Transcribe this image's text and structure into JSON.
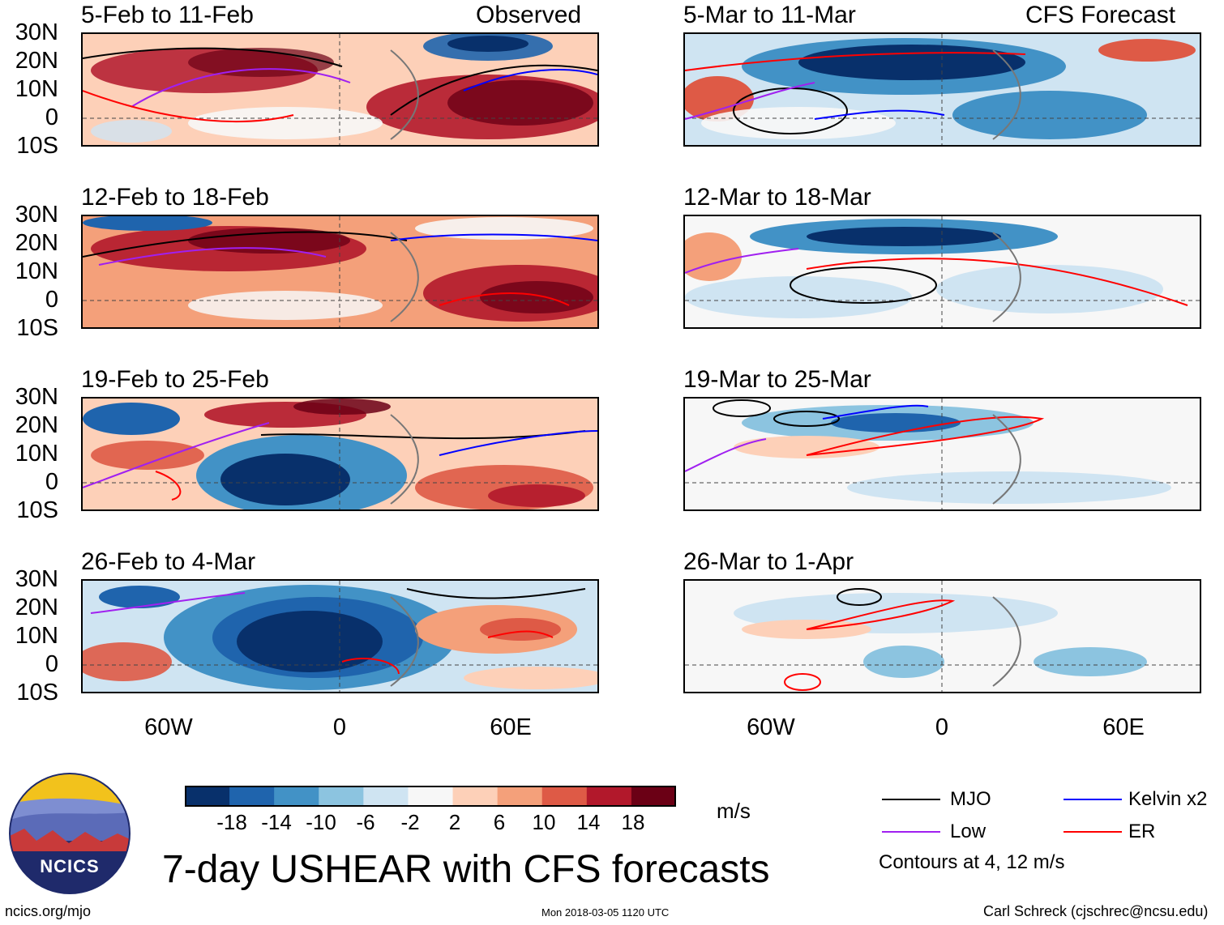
{
  "header": {
    "left_label": "Observed",
    "right_label": "CFS Forecast"
  },
  "panels_observed": [
    {
      "title": "5-Feb to 11-Feb"
    },
    {
      "title": "12-Feb to 18-Feb"
    },
    {
      "title": "19-Feb to 25-Feb"
    },
    {
      "title": "26-Feb to 4-Mar"
    }
  ],
  "panels_forecast": [
    {
      "title": "5-Mar to 11-Mar"
    },
    {
      "title": "12-Mar to 18-Mar"
    },
    {
      "title": "19-Mar to 25-Mar"
    },
    {
      "title": "26-Mar to 1-Apr"
    }
  ],
  "lat_labels": [
    "30N",
    "20N",
    "10N",
    "0",
    "10S"
  ],
  "lon_labels": [
    "60W",
    "0",
    "60E"
  ],
  "colorbar": {
    "labels": [
      "-18",
      "-14",
      "-10",
      "-6",
      "-2",
      "2",
      "6",
      "10",
      "14",
      "18"
    ],
    "colors": [
      "#08306b",
      "#1f64ad",
      "#4292c6",
      "#8cc4e0",
      "#cfe4f2",
      "#f7f7f7",
      "#fdd0b8",
      "#f4a07a",
      "#de5a46",
      "#b2182b",
      "#6b0015"
    ],
    "units": "m/s"
  },
  "legend": {
    "mjo": "MJO",
    "kelvin": "Kelvin x2",
    "low": "Low",
    "er": "ER",
    "contour_note": "Contours at 4, 12 m/s",
    "colors": {
      "mjo": "#000000",
      "kelvin": "#0000ff",
      "low": "#a020f0",
      "er": "#ff0000"
    }
  },
  "logo": {
    "text": "NCICS"
  },
  "main_title": "7-day USHEAR with CFS forecasts",
  "footer": {
    "url": "ncics.org/mjo",
    "timestamp": "Mon 2018-03-05 1120 UTC",
    "credit": "Carl Schreck (cjschrec@ncsu.edu)"
  }
}
